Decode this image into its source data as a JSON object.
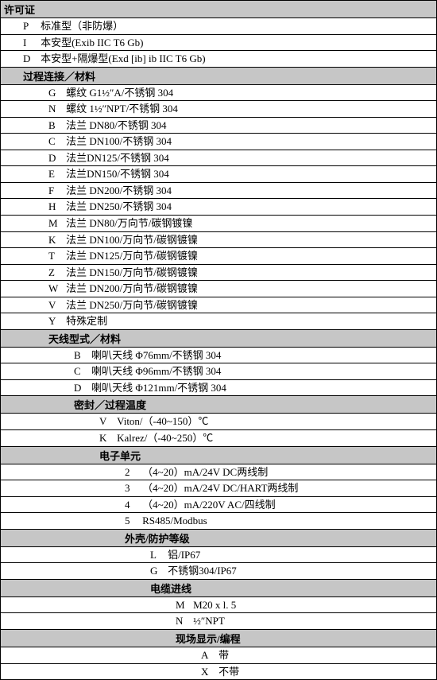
{
  "document": {
    "background_color": "#ffffff",
    "text_color": "#000000",
    "header_bg": "#c6c6c6",
    "border_color": "#000000",
    "font_family": "SimSun",
    "font_size_pt": 10
  },
  "sections": [
    {
      "indentLevel": 0,
      "header": "许可证",
      "items": [
        {
          "code": "P",
          "desc": "标准型（非防爆）"
        },
        {
          "code": "I",
          "desc": "本安型(Exib IIC T6 Gb)"
        },
        {
          "code": "D",
          "desc": "本安型+隔爆型(Exd [ib] ib  IIC T6 Gb)"
        }
      ]
    },
    {
      "indentLevel": 1,
      "header": "过程连接／材料",
      "items": [
        {
          "code": "G",
          "desc": "螺纹 G1½″A/不锈钢 304"
        },
        {
          "code": "N",
          "desc": "螺纹 1½″NPT/不锈钢 304"
        },
        {
          "code": "B",
          "desc": "法兰 DN80/不锈钢 304"
        },
        {
          "code": "C",
          "desc": "法兰 DN100/不锈钢 304"
        },
        {
          "code": "D",
          "desc": "法兰DN125/不锈钢 304"
        },
        {
          "code": "E",
          "desc": "法兰DN150/不锈钢  304"
        },
        {
          "code": "F",
          "desc": "法兰 DN200/不锈钢 304"
        },
        {
          "code": "H",
          "desc": "法兰 DN250/不锈钢 304"
        },
        {
          "code": "M",
          "desc": "法兰 DN80/万向节/碳钢镀镍"
        },
        {
          "code": "K",
          "desc": "法兰 DN100/万向节/碳钢镀镍"
        },
        {
          "code": "T",
          "desc": "法兰 DN125/万向节/碳钢镀镍"
        },
        {
          "code": "Z",
          "desc": "法兰 DN150/万向节/碳钢镀镍"
        },
        {
          "code": "W",
          "desc": "法兰 DN200/万向节/碳钢镀镍"
        },
        {
          "code": "V",
          "desc": "法兰 DN250/万向节/碳钢镀镍"
        },
        {
          "code": "Y",
          "desc": "特殊定制"
        }
      ]
    },
    {
      "indentLevel": 2,
      "header": "天线型式／材料",
      "items": [
        {
          "code": "B",
          "desc": "喇叭天线 Φ76mm/不锈钢 304"
        },
        {
          "code": "C",
          "desc": "喇叭天线 Φ96mm/不锈钢 304"
        },
        {
          "code": "D",
          "desc": "喇叭天线 Φ121mm/不锈钢 304"
        }
      ]
    },
    {
      "indentLevel": 3,
      "header": "密封／过程温度",
      "items": [
        {
          "code": "V",
          "desc": "Viton/（-40~150）℃"
        },
        {
          "code": "K",
          "desc": "Kalrez/（-40~250）℃"
        }
      ]
    },
    {
      "indentLevel": 4,
      "header": "电子单元",
      "items": [
        {
          "code": "2",
          "desc": "（4~20）mA/24V DC两线制"
        },
        {
          "code": "3",
          "desc": "（4~20）mA/24V DC/HART两线制"
        },
        {
          "code": "4",
          "desc": "（4~20）mA/220V AC/四线制"
        },
        {
          "code": "5",
          "desc": "RS485/Modbus"
        }
      ]
    },
    {
      "indentLevel": 5,
      "header": "外壳/防护等级",
      "items": [
        {
          "code": "L",
          "desc": "铝/IP67"
        },
        {
          "code": "G",
          "desc": "不锈钢304/IP67"
        }
      ]
    },
    {
      "indentLevel": 6,
      "header": "电缆进线",
      "items": [
        {
          "code": "M",
          "desc": "M20 x l. 5"
        },
        {
          "code": "N",
          "desc": "½″NPT"
        }
      ]
    },
    {
      "indentLevel": 7,
      "header": "现场显示/编程",
      "items": [
        {
          "code": "A",
          "desc": "带"
        },
        {
          "code": "X",
          "desc": "不带"
        }
      ]
    }
  ]
}
